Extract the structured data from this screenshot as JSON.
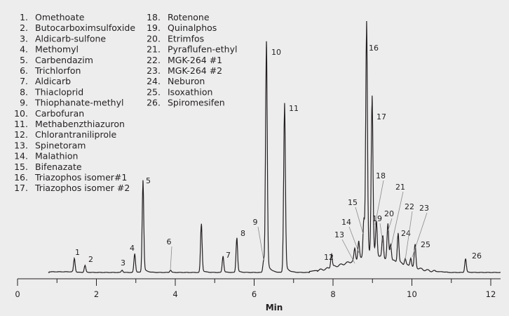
{
  "chart_data": {
    "type": "line",
    "title": "",
    "xlabel": "Min",
    "ylabel": "",
    "xlim": [
      0,
      12.3
    ],
    "x_ticks": [
      0,
      2,
      4,
      6,
      8,
      10,
      12
    ],
    "x_minor_ticks": [
      1,
      3,
      5,
      7,
      9,
      11
    ],
    "y_units": "relative response (%)",
    "grid": false,
    "legend_placement": "top-left",
    "compounds": [
      {
        "id": "1",
        "name": "Omethoate"
      },
      {
        "id": "2",
        "name": "Butocarboximsulfoxide"
      },
      {
        "id": "3",
        "name": "Aldicarb-sulfone"
      },
      {
        "id": "4",
        "name": "Methomyl"
      },
      {
        "id": "5",
        "name": "Carbendazim"
      },
      {
        "id": "6",
        "name": "Trichlorfon"
      },
      {
        "id": "7",
        "name": "Aldicarb"
      },
      {
        "id": "8",
        "name": "Thiacloprid"
      },
      {
        "id": "9",
        "name": "Thiophanate-methyl"
      },
      {
        "id": "10",
        "name": "Carbofuran"
      },
      {
        "id": "11",
        "name": "Methabenzthiazuron"
      },
      {
        "id": "12",
        "name": "Chlorantraniliprole"
      },
      {
        "id": "13",
        "name": "Spinetoram"
      },
      {
        "id": "14",
        "name": "Malathion"
      },
      {
        "id": "15",
        "name": "Bifenazate"
      },
      {
        "id": "16",
        "name": "Triazophos isomer#1"
      },
      {
        "id": "17",
        "name": "Triazophos isomer #2"
      },
      {
        "id": "18",
        "name": "Rotenone"
      },
      {
        "id": "19",
        "name": "Quinalphos"
      },
      {
        "id": "20",
        "name": "Etrimfos"
      },
      {
        "id": "21",
        "name": "Pyraflufen-ethyl"
      },
      {
        "id": "22",
        "name": "MGK-264 #1"
      },
      {
        "id": "23",
        "name": "MGK-264 #2"
      },
      {
        "id": "24",
        "name": "Neburon"
      },
      {
        "id": "25",
        "name": "Isoxathion"
      },
      {
        "id": "26",
        "name": "Spiromesifen"
      }
    ],
    "peaks": [
      {
        "label": "1",
        "rt": 1.44,
        "height": 6
      },
      {
        "label": "2",
        "rt": 1.71,
        "height": 3
      },
      {
        "label": "3",
        "rt": 2.65,
        "height": 1
      },
      {
        "label": "4",
        "rt": 2.97,
        "height": 8
      },
      {
        "label": "5",
        "rt": 3.18,
        "height": 39
      },
      {
        "label": "6",
        "rt": 3.88,
        "height": 1
      },
      {
        "label": "",
        "rt": 4.66,
        "height": 21
      },
      {
        "label": "7",
        "rt": 5.21,
        "height": 7
      },
      {
        "label": "8",
        "rt": 5.56,
        "height": 15
      },
      {
        "label": "9",
        "rt": 6.24,
        "height": 5
      },
      {
        "label": "10",
        "rt": 6.31,
        "height": 98
      },
      {
        "label": "11",
        "rt": 6.77,
        "height": 72
      },
      {
        "label": "12",
        "rt": 7.96,
        "height": 6
      },
      {
        "label": "13",
        "rt": 8.55,
        "height": 5
      },
      {
        "label": "14",
        "rt": 8.65,
        "height": 8
      },
      {
        "label": "15",
        "rt": 8.78,
        "height": 17
      },
      {
        "label": "16",
        "rt": 8.85,
        "height": 100
      },
      {
        "label": "17",
        "rt": 8.99,
        "height": 68
      },
      {
        "label": "18",
        "rt": 9.1,
        "height": 15
      },
      {
        "label": "19",
        "rt": 9.26,
        "height": 10
      },
      {
        "label": "20",
        "rt": 9.39,
        "height": 15
      },
      {
        "label": "21",
        "rt": 9.46,
        "height": 7
      },
      {
        "label": "24",
        "rt": 9.65,
        "height": 13
      },
      {
        "label": "22",
        "rt": 9.83,
        "height": 3
      },
      {
        "label": "23",
        "rt": 9.97,
        "height": 4
      },
      {
        "label": "25",
        "rt": 10.08,
        "height": 10
      },
      {
        "label": "26",
        "rt": 11.36,
        "height": 6
      }
    ]
  }
}
